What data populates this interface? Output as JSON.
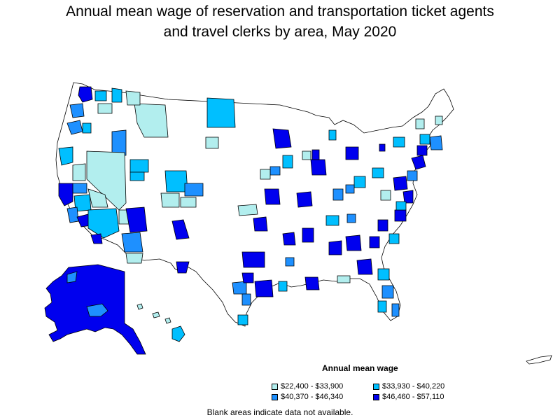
{
  "title": {
    "line1": "Annual mean wage of reservation and transportation ticket agents",
    "line2": "and travel clerks by area, May 2020"
  },
  "legend": {
    "title": "Annual mean wage",
    "items": [
      {
        "label": "$22,400 - $33,900",
        "color": "#b2eeee"
      },
      {
        "label": "$33,930 - $40,220",
        "color": "#00bfff"
      },
      {
        "label": "$40,370 - $46,340",
        "color": "#1e90ff"
      },
      {
        "label": "$46,460 - $57,110",
        "color": "#0000ee"
      }
    ]
  },
  "footnote": "Blank areas indicate data not available.",
  "colors": {
    "no_data": "#ffffff",
    "border": "#000000"
  }
}
